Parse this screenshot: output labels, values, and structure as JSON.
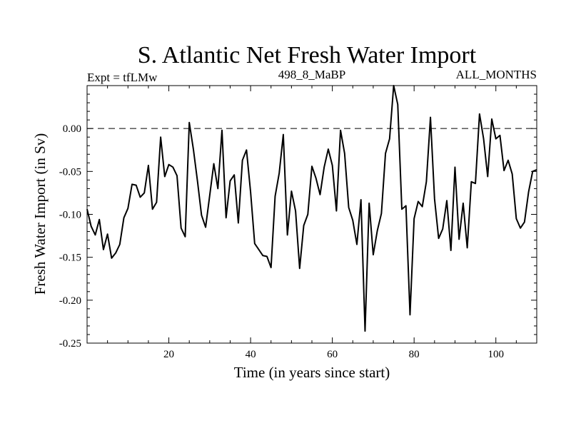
{
  "chart_data": {
    "type": "line",
    "title": "S. Atlantic Net Fresh Water Import",
    "subtitle_left": "Expt = tfLMw",
    "subtitle_center": "498_8_MaBP",
    "subtitle_right": "ALL_MONTHS",
    "xlabel": "Time (in years since start)",
    "ylabel": "Fresh Water Import (in Sv)",
    "xlim": [
      0,
      110
    ],
    "ylim": [
      -0.25,
      0.05
    ],
    "xticks": [
      20,
      40,
      60,
      80,
      100
    ],
    "xtick_labels": [
      "20",
      "40",
      "60",
      "80",
      "100"
    ],
    "yticks": [
      -0.25,
      -0.2,
      -0.15,
      -0.1,
      -0.05,
      0.0
    ],
    "ytick_labels": [
      "-0.25",
      "-0.20",
      "-0.15",
      "-0.10",
      "-0.05",
      "0.00"
    ],
    "reference_line": 0.0,
    "series": [
      {
        "name": "Net fresh water import",
        "x": [
          0,
          1,
          2,
          3,
          4,
          5,
          6,
          7,
          8,
          9,
          10,
          11,
          12,
          13,
          14,
          15,
          16,
          17,
          18,
          19,
          20,
          21,
          22,
          23,
          24,
          25,
          26,
          27,
          28,
          29,
          30,
          31,
          32,
          33,
          34,
          35,
          36,
          37,
          38,
          39,
          40,
          41,
          42,
          43,
          44,
          45,
          46,
          47,
          48,
          49,
          50,
          51,
          52,
          53,
          54,
          55,
          56,
          57,
          58,
          59,
          60,
          61,
          62,
          63,
          64,
          65,
          66,
          67,
          68,
          69,
          70,
          71,
          72,
          73,
          74,
          75,
          76,
          77,
          78,
          79,
          80,
          81,
          82,
          83,
          84,
          85,
          86,
          87,
          88,
          89,
          90,
          91,
          92,
          93,
          94,
          95,
          96,
          97,
          98,
          99,
          100,
          101,
          102,
          103,
          104,
          105,
          106,
          107,
          108,
          109,
          110
        ],
        "y": [
          -0.094,
          -0.114,
          -0.124,
          -0.106,
          -0.141,
          -0.123,
          -0.151,
          -0.145,
          -0.135,
          -0.104,
          -0.093,
          -0.065,
          -0.066,
          -0.08,
          -0.075,
          -0.043,
          -0.094,
          -0.086,
          -0.01,
          -0.056,
          -0.042,
          -0.045,
          -0.055,
          -0.116,
          -0.126,
          0.007,
          -0.024,
          -0.061,
          -0.101,
          -0.115,
          -0.078,
          -0.041,
          -0.07,
          -0.002,
          -0.104,
          -0.061,
          -0.054,
          -0.11,
          -0.037,
          -0.025,
          -0.074,
          -0.134,
          -0.141,
          -0.148,
          -0.149,
          -0.162,
          -0.079,
          -0.052,
          -0.007,
          -0.124,
          -0.073,
          -0.096,
          -0.163,
          -0.113,
          -0.1,
          -0.044,
          -0.058,
          -0.077,
          -0.045,
          -0.024,
          -0.043,
          -0.096,
          -0.002,
          -0.029,
          -0.092,
          -0.107,
          -0.135,
          -0.083,
          -0.236,
          -0.087,
          -0.147,
          -0.119,
          -0.099,
          -0.029,
          -0.012,
          0.05,
          0.028,
          -0.094,
          -0.09,
          -0.217,
          -0.105,
          -0.085,
          -0.091,
          -0.062,
          0.013,
          -0.082,
          -0.128,
          -0.117,
          -0.084,
          -0.142,
          -0.045,
          -0.129,
          -0.087,
          -0.139,
          -0.062,
          -0.064,
          0.017,
          -0.012,
          -0.056,
          0.011,
          -0.012,
          -0.008,
          -0.049,
          -0.037,
          -0.053,
          -0.105,
          -0.116,
          -0.109,
          -0.074,
          -0.05,
          -0.048
        ]
      }
    ]
  }
}
